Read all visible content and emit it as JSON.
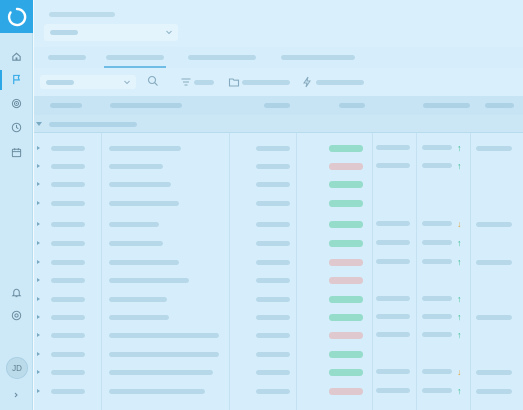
{
  "user": {
    "initials": "JD"
  },
  "sidebar": {
    "icons": [
      "home-icon",
      "flag-icon",
      "target-icon",
      "clock-icon",
      "calendar-icon",
      "bell-icon",
      "help-icon"
    ]
  },
  "grid": {
    "rows": [
      {
        "status": "green",
        "trend": "up"
      },
      {
        "status": "red",
        "trend": "up"
      },
      {
        "status": "green",
        "trend": "none"
      },
      {
        "status": "green",
        "trend": "none"
      },
      {
        "status": "green",
        "trend": "down"
      },
      {
        "status": "green",
        "trend": "up"
      },
      {
        "status": "red",
        "trend": "up"
      },
      {
        "status": "red",
        "trend": "none"
      },
      {
        "status": "green",
        "trend": "up"
      },
      {
        "status": "green",
        "trend": "up"
      },
      {
        "status": "red",
        "trend": "up"
      },
      {
        "status": "green",
        "trend": "none"
      },
      {
        "status": "green",
        "trend": "down"
      },
      {
        "status": "red",
        "trend": "up"
      }
    ]
  },
  "colors": {
    "accent": "#2ea7e6",
    "status_green": "#95dcca",
    "status_red": "#dfc9cf",
    "trend_up": "#35b98a",
    "trend_down": "#e0a94a"
  }
}
